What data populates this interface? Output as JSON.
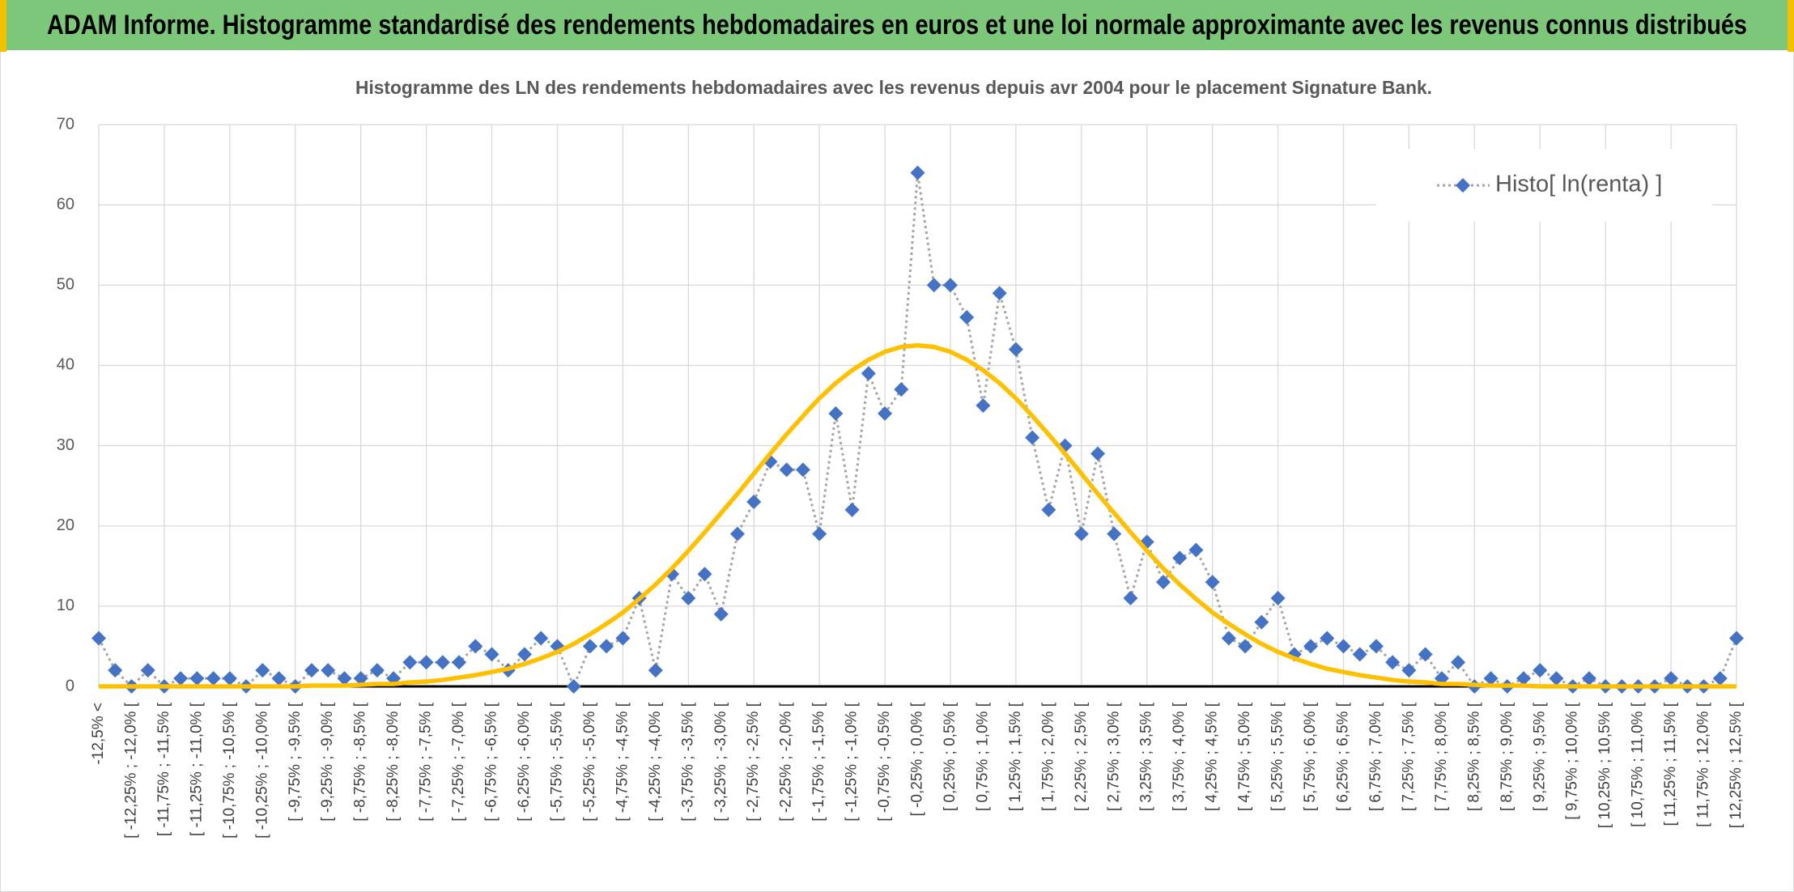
{
  "header": {
    "title": "ADAM Informe. Histogramme standardisé des rendements hebdomadaires en euros et une loi normale approximante avec les revenus connus distribués"
  },
  "chart_data": {
    "type": "line",
    "title": "Histogramme des LN des rendements hebdomadaires avec les revenus depuis avr 2004 pour le placement Signature Bank.",
    "categories": [
      "-12,5% <",
      null,
      "[ -12,25% ; -12,0% [",
      null,
      "[ -11,75% ; -11,5% [",
      null,
      "[ -11,25% ; -11,0% [",
      null,
      "[ -10,75% ; -10,5% [",
      null,
      "[ -10,25% ; -10,0% [",
      null,
      "[ -9,75% ; -9,5% [",
      null,
      "[ -9,25% ; -9,0% [",
      null,
      "[ -8,75% ; -8,5% [",
      null,
      "[ -8,25% ; -8,0% [",
      null,
      "[ -7,75% ; -7,5% [",
      null,
      "[ -7,25% ; -7,0% [",
      null,
      "[ -6,75% ; -6,5% [",
      null,
      "[ -6,25% ; -6,0% [",
      null,
      "[ -5,75% ; -5,5% [",
      null,
      "[ -5,25% ; -5,0% [",
      null,
      "[ -4,75% ; -4,5% [",
      null,
      "[ -4,25% ; -4,0% [",
      null,
      "[ -3,75% ; -3,5% [",
      null,
      "[ -3,25% ; -3,0% [",
      null,
      "[ -2,75% ; -2,5% [",
      null,
      "[ -2,25% ; -2,0% [",
      null,
      "[ -1,75% ; -1,5% [",
      null,
      "[ -1,25% ; -1,0% [",
      null,
      "[ -0,75% ; -0,5% [",
      null,
      "[ -0,25% ; 0,0% [",
      null,
      "[ 0,25% ; 0,5% [",
      null,
      "[ 0,75% ; 1,0% [",
      null,
      "[ 1,25% ; 1,5% [",
      null,
      "[ 1,75% ; 2,0% [",
      null,
      "[ 2,25% ; 2,5% [",
      null,
      "[ 2,75% ; 3,0% [",
      null,
      "[ 3,25% ; 3,5% [",
      null,
      "[ 3,75% ; 4,0% [",
      null,
      "[ 4,25% ; 4,5% [",
      null,
      "[ 4,75% ; 5,0% [",
      null,
      "[ 5,25% ; 5,5% [",
      null,
      "[ 5,75% ; 6,0% [",
      null,
      "[ 6,25% ; 6,5% [",
      null,
      "[ 6,75% ; 7,0% [",
      null,
      "[ 7,25% ; 7,5% [",
      null,
      "[ 7,75% ; 8,0% [",
      null,
      "[ 8,25% ; 8,5% [",
      null,
      "[ 8,75% ; 9,0% [",
      null,
      "[ 9,25% ; 9,5% [",
      null,
      "[ 9,75% ; 10,0% [",
      null,
      "[ 10,25% ; 10,5% [",
      null,
      "[ 10,75% ; 11,0% [",
      null,
      "[ 11,25% ; 11,5% [",
      null,
      "[ 11,75% ; 12,0% [",
      null,
      "[ 12,25% ; 12,5% ["
    ],
    "series": [
      {
        "name": "Histo[ ln(renta) ]",
        "color": "#4472c4",
        "line_color": "#a5a5a5",
        "marker": "diamond",
        "values": [
          6,
          2,
          0,
          2,
          0,
          1,
          1,
          1,
          1,
          0,
          2,
          1,
          0,
          2,
          2,
          1,
          1,
          2,
          1,
          3,
          3,
          3,
          3,
          5,
          4,
          2,
          4,
          6,
          5,
          0,
          5,
          5,
          6,
          11,
          2,
          14,
          11,
          14,
          9,
          19,
          23,
          28,
          27,
          27,
          19,
          34,
          22,
          39,
          34,
          37,
          64,
          50,
          50,
          46,
          35,
          49,
          42,
          31,
          22,
          30,
          19,
          29,
          19,
          11,
          18,
          13,
          16,
          17,
          13,
          6,
          5,
          8,
          11,
          4,
          5,
          6,
          5,
          4,
          5,
          3,
          2,
          4,
          1,
          3,
          0,
          1,
          0,
          1,
          2,
          1,
          0,
          1,
          0,
          0,
          0,
          0,
          1,
          0,
          0,
          1,
          6
        ]
      },
      {
        "color": "#ffc000",
        "values": [
          0,
          0,
          0,
          0,
          0,
          0,
          0,
          0,
          0,
          0,
          0,
          0,
          0,
          0.1,
          0.1,
          0.1,
          0.2,
          0.3,
          0.3,
          0.5,
          0.6,
          0.8,
          1.1,
          1.4,
          1.8,
          2.2,
          2.8,
          3.5,
          4.3,
          5.3,
          6.5,
          7.8,
          9.2,
          10.9,
          12.7,
          14.7,
          16.9,
          19.2,
          21.6,
          24,
          26.5,
          29,
          31.4,
          33.7,
          35.9,
          37.8,
          39.4,
          40.7,
          41.7,
          42.3,
          42.5,
          42.3,
          41.7,
          40.7,
          39.4,
          37.8,
          35.9,
          33.7,
          31.4,
          29,
          26.5,
          24,
          21.6,
          19.2,
          16.9,
          14.7,
          12.7,
          10.9,
          9.2,
          7.8,
          6.5,
          5.3,
          4.3,
          3.5,
          2.8,
          2.2,
          1.8,
          1.4,
          1.1,
          0.8,
          0.6,
          0.5,
          0.3,
          0.3,
          0.2,
          0.1,
          0.1,
          0.1,
          0,
          0,
          0,
          0,
          0,
          0,
          0,
          0,
          0,
          0,
          0,
          0,
          0
        ]
      }
    ],
    "ylim": [
      0,
      70
    ],
    "yticks": [
      0,
      10,
      20,
      30,
      40,
      50,
      60,
      70
    ],
    "grid": true,
    "legend": "upper right"
  }
}
